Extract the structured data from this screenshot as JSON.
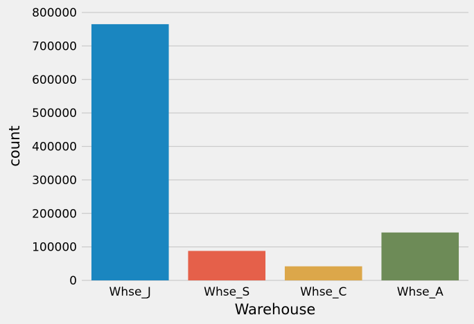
{
  "chart_data": {
    "type": "bar",
    "title": "",
    "xlabel": "Warehouse",
    "ylabel": "count",
    "categories": [
      "Whse_J",
      "Whse_S",
      "Whse_C",
      "Whse_A"
    ],
    "values": [
      765000,
      88000,
      42000,
      143000
    ],
    "ylim": [
      0,
      800000
    ],
    "yticks": [
      "0",
      "100000",
      "200000",
      "300000",
      "400000",
      "500000",
      "600000",
      "700000",
      "800000"
    ],
    "grid": "horizontal",
    "legend": "none",
    "colors": [
      "#1a86c0",
      "#e5604a",
      "#dca74a",
      "#6d8b57"
    ],
    "background": "#f0f0f0"
  }
}
